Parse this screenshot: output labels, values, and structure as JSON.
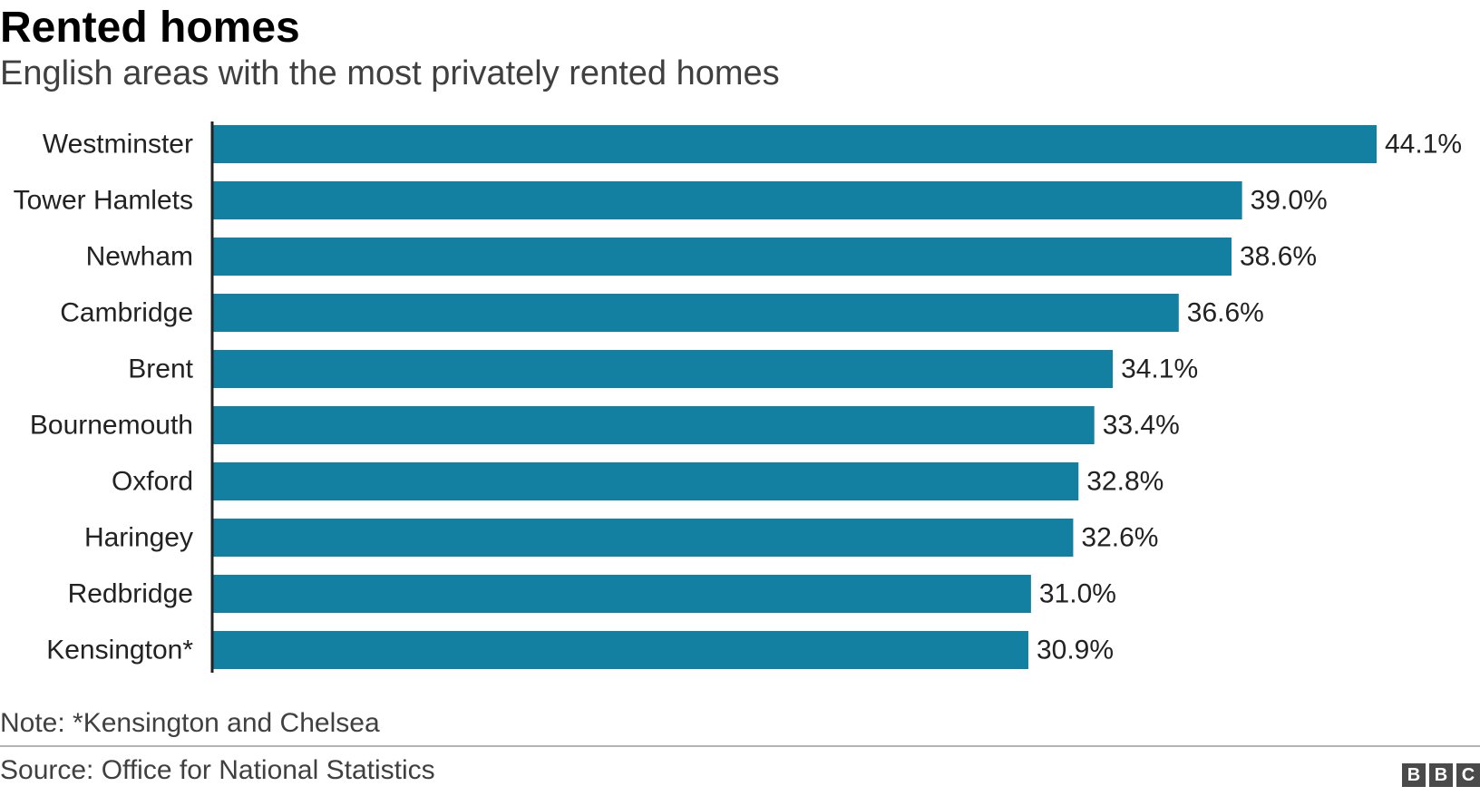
{
  "chart_data": {
    "type": "bar",
    "orientation": "horizontal",
    "title": "Rented homes",
    "subtitle": "English areas with the most privately rented homes",
    "categories": [
      "Westminster",
      "Tower Hamlets",
      "Newham",
      "Cambridge",
      "Brent",
      "Bournemouth",
      "Oxford",
      "Haringey",
      "Redbridge",
      "Kensington*"
    ],
    "values": [
      44.1,
      39.0,
      38.6,
      36.6,
      34.1,
      33.4,
      32.8,
      32.6,
      31.0,
      30.9
    ],
    "value_labels": [
      "44.1%",
      "39.0%",
      "38.6%",
      "36.6%",
      "34.1%",
      "33.4%",
      "32.8%",
      "32.6%",
      "31.0%",
      "30.9%"
    ],
    "xlim": [
      0,
      44.1
    ],
    "grid": false,
    "bar_color": "#1380A1"
  },
  "footer": {
    "note": "Note: *Kensington and Chelsea",
    "source": "Source: Office for National Statistics",
    "logo_letters": [
      "B",
      "B",
      "C"
    ]
  }
}
